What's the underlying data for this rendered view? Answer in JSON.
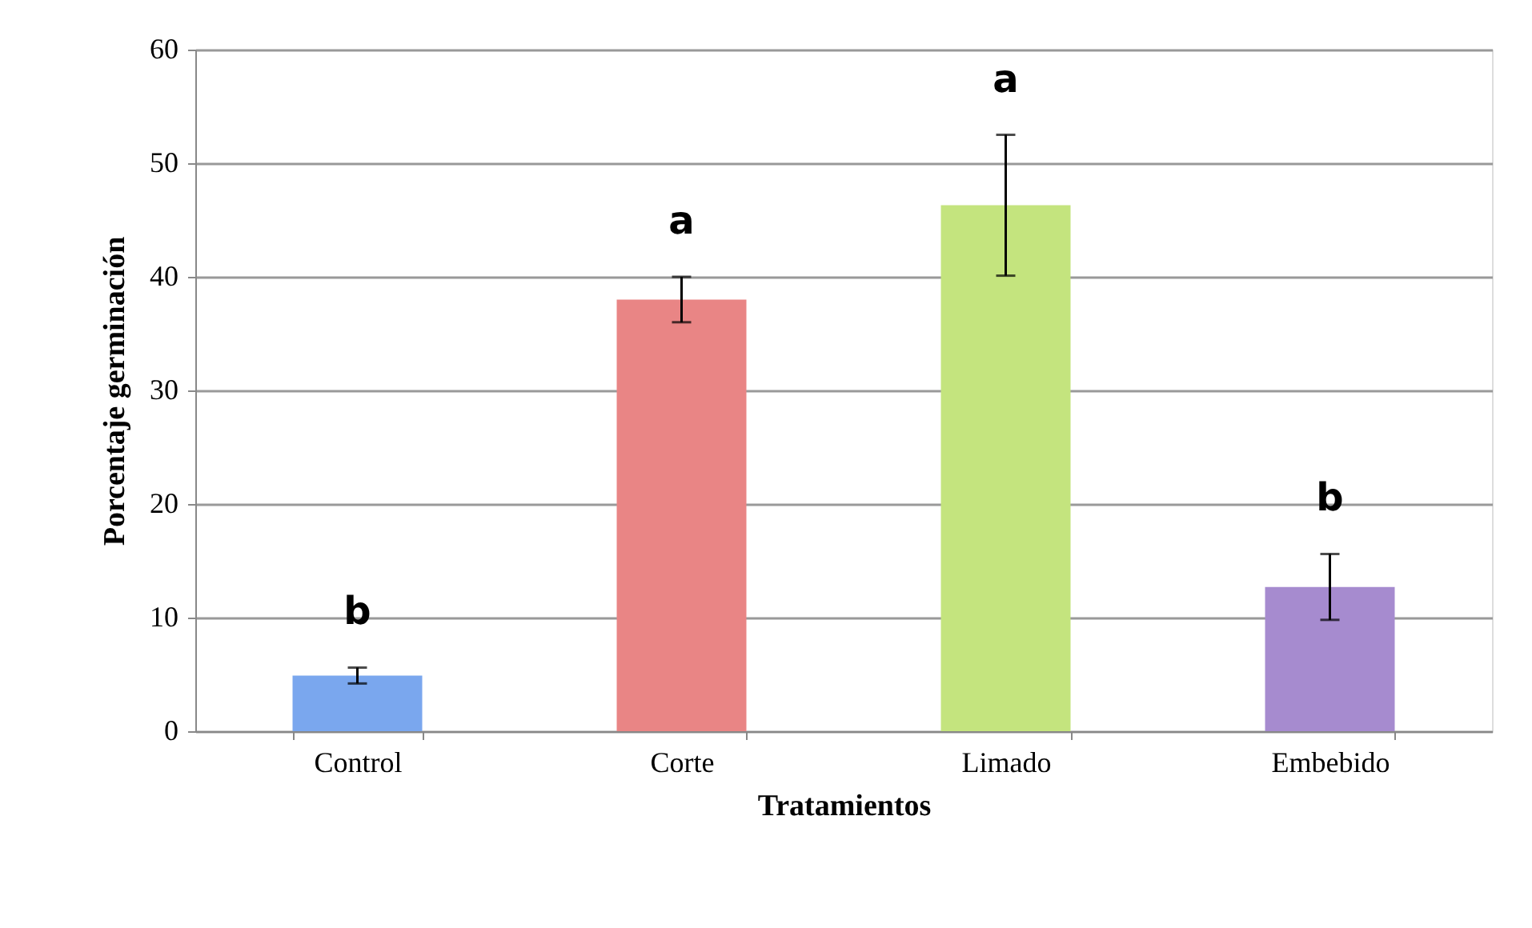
{
  "chart_data": {
    "type": "bar",
    "xlabel": "Tratamientos",
    "ylabel": "Porcentaje germinación",
    "categories": [
      "Control",
      "Corte",
      "Limado",
      "Embebido"
    ],
    "values": [
      4.9,
      38.0,
      46.3,
      12.7
    ],
    "errors": [
      0.7,
      2.0,
      6.2,
      2.9
    ],
    "colors": [
      "#7aa7ee",
      "#e98585",
      "#c4e47e",
      "#a68bcf"
    ],
    "ylim": [
      0,
      60
    ],
    "yticks": [
      0,
      10,
      20,
      30,
      40,
      50,
      60
    ],
    "grid": "y",
    "annotations": [
      "b",
      "a",
      "a",
      "b"
    ]
  }
}
